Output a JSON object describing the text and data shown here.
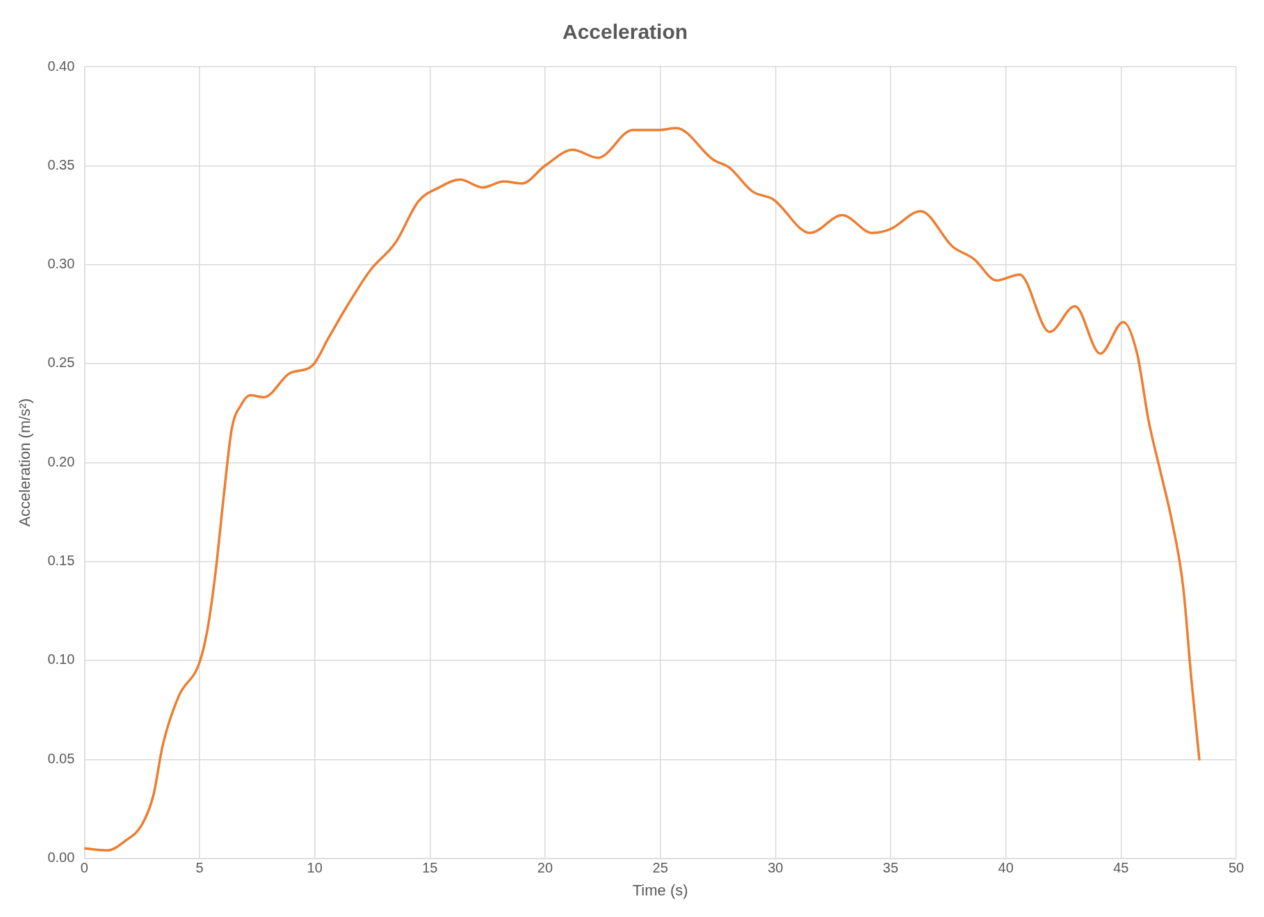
{
  "chart_data": {
    "type": "line",
    "title": "Acceleration",
    "xlabel": "Time (s)",
    "ylabel": "Acceleration (m/s²)",
    "x": [
      0,
      1.0,
      1.8,
      2.5,
      3.0,
      3.4,
      4.1,
      5.0,
      5.35,
      5.7,
      6.05,
      6.4,
      6.8,
      7.2,
      7.8,
      8.9,
      9.9,
      10.6,
      11.35,
      12.4,
      13.5,
      14.5,
      15.4,
      16.3,
      17.3,
      18.2,
      19.0,
      20.0,
      21.2,
      22.3,
      23.8,
      24.9,
      25.7,
      27.3,
      28.0,
      29.0,
      29.9,
      31.5,
      32.9,
      34.2,
      35.0,
      36.3,
      37.7,
      38.6,
      39.6,
      40.6,
      41.9,
      43.0,
      44.1,
      45.1,
      45.7,
      46.2,
      46.7,
      47.2,
      47.7,
      48.05,
      48.4
    ],
    "series": [
      {
        "color": "#ed7d31",
        "values": [
          0.005,
          0.004,
          0.009,
          0.017,
          0.032,
          0.057,
          0.082,
          0.099,
          0.116,
          0.145,
          0.183,
          0.217,
          0.229,
          0.234,
          0.233,
          0.245,
          0.249,
          0.263,
          0.278,
          0.297,
          0.311,
          0.332,
          0.339,
          0.343,
          0.339,
          0.342,
          0.341,
          0.35,
          0.358,
          0.354,
          0.368,
          0.368,
          0.369,
          0.353,
          0.349,
          0.337,
          0.333,
          0.316,
          0.325,
          0.316,
          0.318,
          0.327,
          0.309,
          0.303,
          0.292,
          0.295,
          0.266,
          0.279,
          0.255,
          0.271,
          0.255,
          0.221,
          0.196,
          0.171,
          0.137,
          0.091,
          0.05
        ]
      }
    ],
    "xlim": [
      0,
      50
    ],
    "xticks": [
      0,
      5,
      10,
      15,
      20,
      25,
      30,
      35,
      40,
      45,
      50
    ],
    "ylim": [
      0,
      0.4
    ],
    "yticks": [
      {
        "value": 0,
        "label": "0.00"
      },
      {
        "value": 0.05,
        "label": "0.05"
      },
      {
        "value": 0.1,
        "label": "0.10"
      },
      {
        "value": 0.15,
        "label": "0.15"
      },
      {
        "value": 0.2,
        "label": "0.20"
      },
      {
        "value": 0.25,
        "label": "0.25"
      },
      {
        "value": 0.3,
        "label": "0.30"
      },
      {
        "value": 0.35,
        "label": "0.35"
      },
      {
        "value": 0.4,
        "label": "0.40"
      }
    ],
    "grid": true,
    "legend": false,
    "marker": "none",
    "line_style": "solid"
  }
}
